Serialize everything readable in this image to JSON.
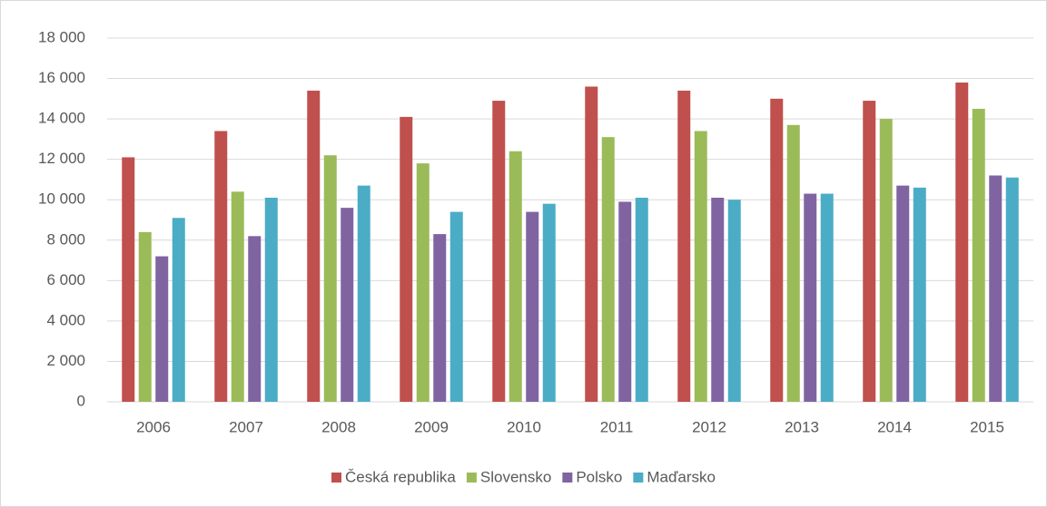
{
  "chart_data": {
    "type": "bar",
    "categories": [
      "2006",
      "2007",
      "2008",
      "2009",
      "2010",
      "2011",
      "2012",
      "2013",
      "2014",
      "2015"
    ],
    "series": [
      {
        "name": "Česká republika",
        "color": "#c0504d",
        "values": [
          12100,
          13400,
          15400,
          14100,
          14900,
          15600,
          15400,
          15000,
          14900,
          15800
        ]
      },
      {
        "name": "Slovensko",
        "color": "#9bbb59",
        "values": [
          8400,
          10400,
          12200,
          11800,
          12400,
          13100,
          13400,
          13700,
          14000,
          14500
        ]
      },
      {
        "name": "Polsko",
        "color": "#8064a2",
        "values": [
          7200,
          8200,
          9600,
          8300,
          9400,
          9900,
          10100,
          10300,
          10700,
          11200
        ]
      },
      {
        "name": "Maďarsko",
        "color": "#4bacc6",
        "values": [
          9100,
          10100,
          10700,
          9400,
          9800,
          10100,
          10000,
          10300,
          10600,
          11100
        ]
      }
    ],
    "ylim": [
      0,
      18000
    ],
    "yticks": [
      0,
      {
        "value": 2000,
        "label": "2 000"
      },
      {
        "value": 4000,
        "label": "4 000"
      },
      {
        "value": 6000,
        "label": "6 000"
      },
      {
        "value": 8000,
        "label": "8 000"
      },
      {
        "value": 10000,
        "label": "10 000"
      },
      {
        "value": 12000,
        "label": "12 000"
      },
      {
        "value": 14000,
        "label": "14 000"
      },
      {
        "value": 16000,
        "label": "16 000"
      },
      {
        "value": 18000,
        "label": "18 000"
      }
    ],
    "grid": true,
    "legend": "bottom"
  }
}
